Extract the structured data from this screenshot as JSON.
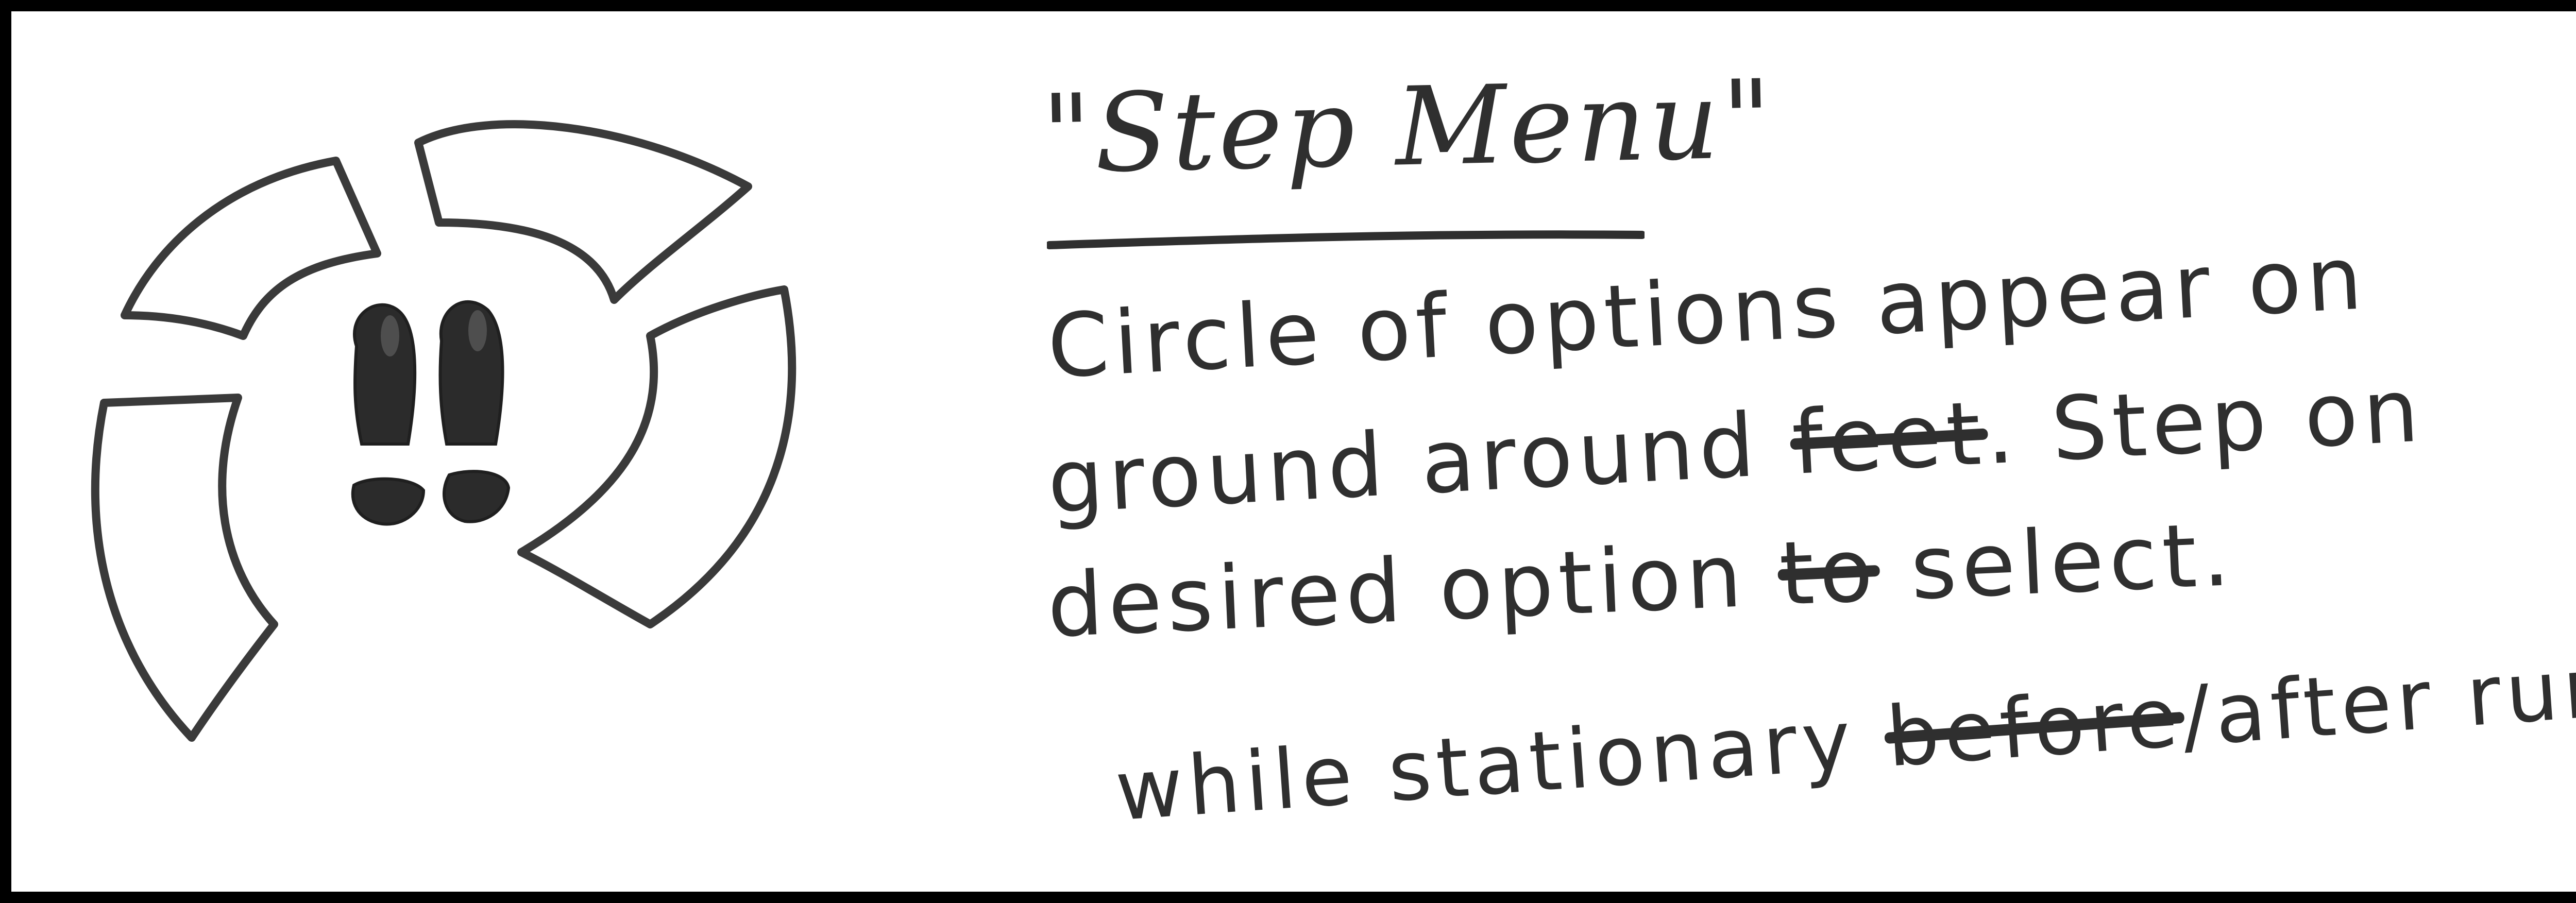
{
  "title": "\"Step Menu\"",
  "body_lines": [
    "Circle of options appear on",
    "ground around",
    "desired option",
    "while stationary"
  ],
  "body_inline": {
    "line2_struck": "feet",
    "line2_after": ". Step on",
    "line3_struck": "to",
    "line3_after": "select.",
    "line4_struck": "before",
    "line4_after": "/after run)"
  },
  "icons": {
    "menu_ring": "radial-step-menu-icon",
    "feet": "footprints-icon"
  },
  "colors": {
    "ink": "#2f2f2f",
    "frame": "#000000",
    "paper": "#ffffff"
  }
}
